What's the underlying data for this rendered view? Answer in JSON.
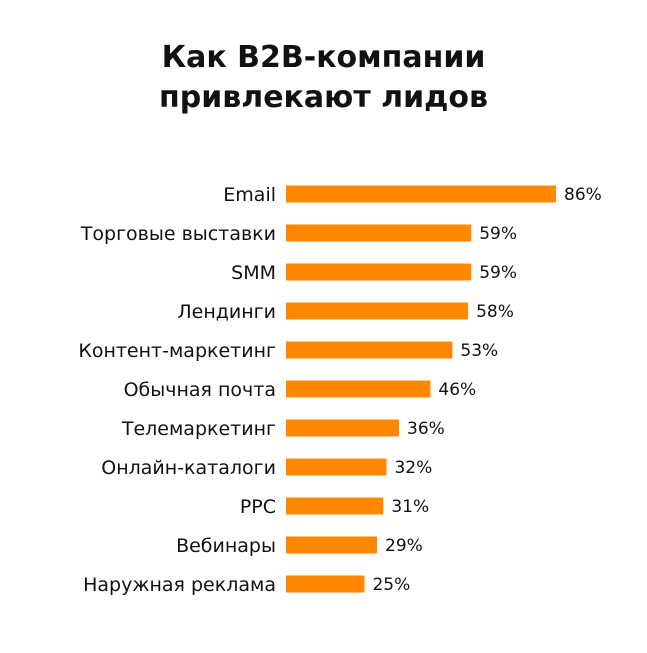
{
  "chart_data": {
    "type": "bar",
    "orientation": "horizontal",
    "title_lines": [
      "Как B2B-компании",
      "привлекают лидов"
    ],
    "categories": [
      "Email",
      "Торговые выставки",
      "SMM",
      "Лендинги",
      "Контент-маркетинг",
      "Обычная почта",
      "Телемаркетинг",
      "Онлайн-каталоги",
      "PPC",
      "Вебинары",
      "Наружная реклама"
    ],
    "values": [
      86,
      59,
      59,
      58,
      53,
      46,
      36,
      32,
      31,
      29,
      25
    ],
    "value_labels": [
      "86%",
      "59%",
      "59%",
      "58%",
      "53%",
      "46%",
      "36%",
      "32%",
      "31%",
      "29%",
      "25%"
    ],
    "unit": "%",
    "xlim": [
      0,
      86
    ],
    "grid": false,
    "legend": "none",
    "bar_color": "#ff8800"
  }
}
